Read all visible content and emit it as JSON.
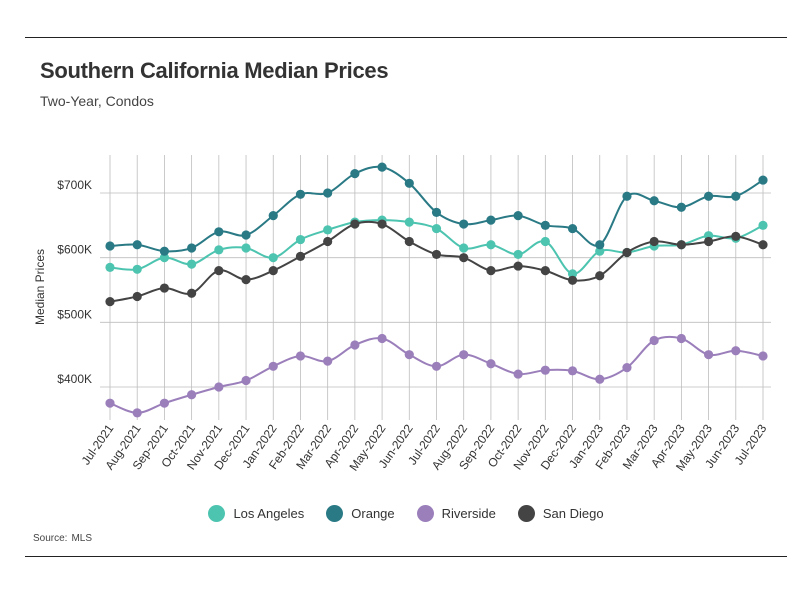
{
  "header": {
    "title": "Southern California Median Prices",
    "subtitle": "Two-Year, Condos"
  },
  "footer": {
    "source_label": "Source:",
    "source_value": "MLS"
  },
  "chart_data": {
    "type": "line",
    "title": "Southern California Median Prices",
    "subtitle": "Two-Year, Condos",
    "xlabel": "",
    "ylabel": "Median Prices",
    "ylim": [
      350000,
      750000
    ],
    "yticks": [
      400000,
      500000,
      600000,
      700000
    ],
    "ytick_labels": [
      "$400K",
      "$500K",
      "$600K",
      "$700K"
    ],
    "grid": true,
    "legend_position": "bottom",
    "categories": [
      "Jul-2021",
      "Aug-2021",
      "Sep-2021",
      "Oct-2021",
      "Nov-2021",
      "Dec-2021",
      "Jan-2022",
      "Feb-2022",
      "Mar-2022",
      "Apr-2022",
      "May-2022",
      "Jun-2022",
      "Jul-2022",
      "Aug-2022",
      "Sep-2022",
      "Oct-2022",
      "Nov-2022",
      "Dec-2022",
      "Jan-2023",
      "Feb-2023",
      "Mar-2023",
      "Apr-2023",
      "May-2023",
      "Jun-2023",
      "Jul-2023"
    ],
    "series": [
      {
        "name": "Los Angeles",
        "color": "#4dc4b0",
        "values": [
          585000,
          582000,
          600000,
          590000,
          612000,
          615000,
          600000,
          628000,
          643000,
          655000,
          658000,
          655000,
          645000,
          615000,
          620000,
          605000,
          625000,
          575000,
          610000,
          608000,
          618000,
          620000,
          634000,
          630000,
          650000
        ]
      },
      {
        "name": "Orange",
        "color": "#2a7a86",
        "values": [
          618000,
          620000,
          610000,
          615000,
          640000,
          635000,
          665000,
          698000,
          700000,
          730000,
          740000,
          715000,
          670000,
          652000,
          658000,
          665000,
          650000,
          645000,
          620000,
          695000,
          688000,
          678000,
          695000,
          695000,
          720000
        ]
      },
      {
        "name": "Riverside",
        "color": "#9b7fbb",
        "values": [
          375000,
          360000,
          375000,
          388000,
          400000,
          410000,
          432000,
          448000,
          440000,
          465000,
          475000,
          450000,
          432000,
          450000,
          436000,
          420000,
          426000,
          425000,
          412000,
          430000,
          472000,
          475000,
          450000,
          456000,
          448000
        ]
      },
      {
        "name": "San Diego",
        "color": "#444444",
        "values": [
          532000,
          540000,
          553000,
          545000,
          580000,
          566000,
          580000,
          602000,
          625000,
          652000,
          652000,
          625000,
          605000,
          600000,
          580000,
          587000,
          580000,
          565000,
          572000,
          608000,
          625000,
          620000,
          625000,
          633000,
          620000
        ]
      }
    ]
  }
}
